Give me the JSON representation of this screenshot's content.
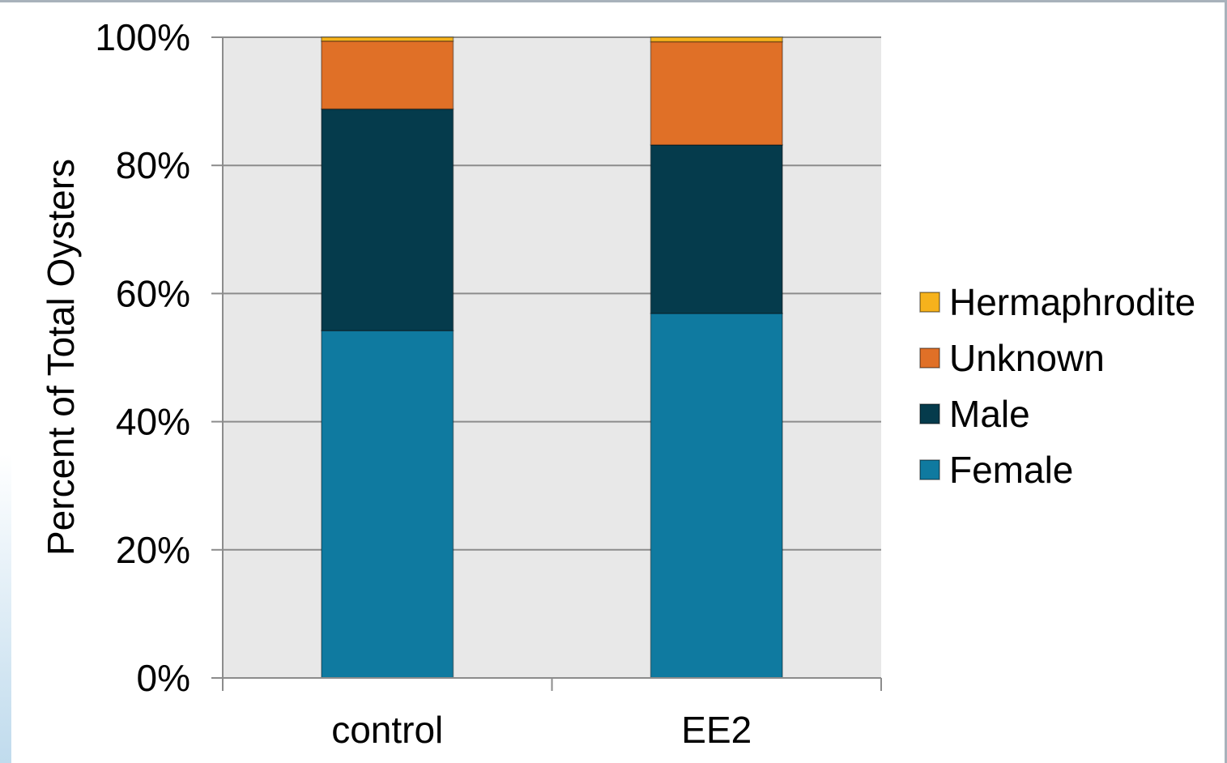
{
  "chart_data": {
    "type": "bar",
    "stacked": true,
    "percent_stacked": true,
    "title": "",
    "xlabel": "",
    "ylabel": "Percent of Total Oysters",
    "categories": [
      "control",
      "EE2"
    ],
    "series": [
      {
        "name": "Female",
        "color": "#0f7aa0",
        "values": [
          54.2,
          56.9
        ]
      },
      {
        "name": "Male",
        "color": "#053b4c",
        "values": [
          34.6,
          26.3
        ]
      },
      {
        "name": "Unknown",
        "color": "#e07027",
        "values": [
          10.6,
          16.1
        ]
      },
      {
        "name": "Hermaphrodite",
        "color": "#f6b21c",
        "values": [
          0.6,
          0.7
        ]
      }
    ],
    "ylim": [
      0,
      100
    ],
    "yticks": [
      "0%",
      "20%",
      "40%",
      "60%",
      "80%",
      "100%"
    ],
    "ytick_values": [
      0,
      20,
      40,
      60,
      80,
      100
    ],
    "grid": true,
    "plot_background": "#e8e8e8",
    "legend": {
      "placement": "right",
      "order": [
        "Hermaphrodite",
        "Unknown",
        "Male",
        "Female"
      ]
    }
  }
}
